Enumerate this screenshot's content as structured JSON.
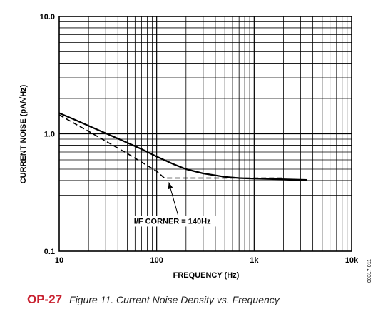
{
  "chart_data": {
    "type": "line",
    "xlabel": "FREQUENCY (Hz)",
    "ylabel": "CURRENT NOISE (pA/√Hz)",
    "xscale": "log",
    "yscale": "log",
    "xlim": [
      10,
      10000
    ],
    "ylim": [
      0.1,
      10
    ],
    "grid": true,
    "x_ticks": [
      {
        "value": 10,
        "label": "10"
      },
      {
        "value": 100,
        "label": "100"
      },
      {
        "value": 1000,
        "label": "1k"
      },
      {
        "value": 10000,
        "label": "10k"
      }
    ],
    "y_ticks": [
      {
        "value": 0.1,
        "label": "0.1"
      },
      {
        "value": 1,
        "label": "1.0"
      },
      {
        "value": 10,
        "label": "10.0"
      }
    ],
    "series": [
      {
        "style": "solid",
        "x": [
          10,
          15,
          20,
          30,
          50,
          70,
          100,
          150,
          200,
          300,
          500,
          700,
          1000,
          2000,
          3500
        ],
        "y": [
          1.5,
          1.3,
          1.17,
          1.01,
          0.84,
          0.74,
          0.64,
          0.55,
          0.5,
          0.46,
          0.43,
          0.42,
          0.415,
          0.41,
          0.405
        ]
      },
      {
        "style": "dashed",
        "x": [
          10,
          20,
          50,
          100,
          120,
          200,
          500,
          1000,
          2000
        ],
        "y": [
          1.45,
          1.05,
          0.68,
          0.48,
          0.42,
          0.42,
          0.42,
          0.42,
          0.42
        ]
      }
    ],
    "annotation": {
      "text": "I/F CORNER = 140Hz",
      "x": 140,
      "y": 0.42
    }
  },
  "figure_code": "00317-011",
  "caption": {
    "part": "OP-27",
    "text": "Figure 11. Current Noise Density vs. Frequency"
  }
}
